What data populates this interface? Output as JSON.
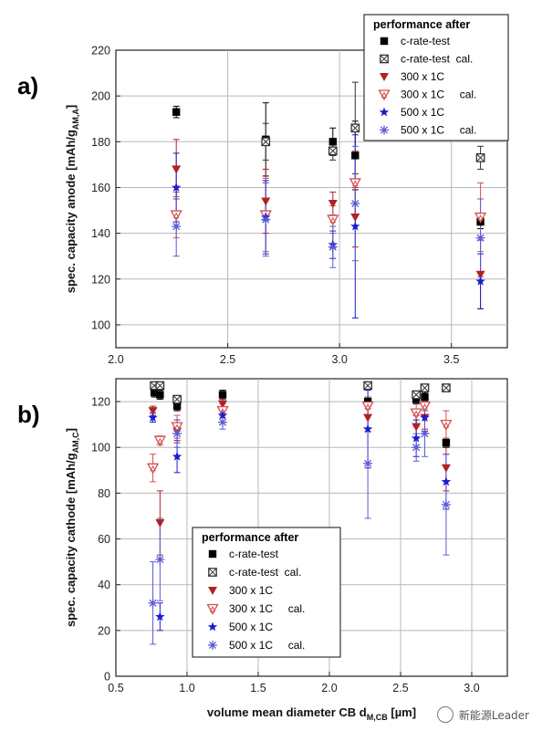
{
  "watermark": "新能源Leader",
  "chart_data": [
    {
      "type": "scatter",
      "panel_label": "a)",
      "ylabel_main": "spec. capacity anode  [mAh/g",
      "ylabel_sub": "AM,A",
      "ylabel_end": "]",
      "xlim": [
        2.0,
        3.75
      ],
      "ylim": [
        90,
        220
      ],
      "xticks": [
        2.0,
        2.5,
        3.0,
        3.5
      ],
      "xtick_labels": [
        "2.0",
        "2.5",
        "3.0",
        "3.5"
      ],
      "yticks": [
        100,
        120,
        140,
        160,
        180,
        200,
        220
      ],
      "grid": true,
      "legend": {
        "position": "top-right",
        "title": "performance after",
        "entries": [
          "c-rate-test",
          "c-rate-test  cal.",
          "300 x 1C",
          "300 x 1C     cal.",
          "500 x 1C",
          "500 x 1C     cal."
        ]
      },
      "series": [
        {
          "name": "c-rate-test",
          "color": "#000000",
          "marker": "square",
          "points": [
            [
              2.27,
              193,
              2.5
            ],
            [
              2.67,
              181,
              16
            ],
            [
              2.97,
              180,
              6
            ],
            [
              3.07,
              174,
              15
            ],
            [
              3.63,
              145,
              3
            ]
          ]
        },
        {
          "name": "c-rate-test  cal.",
          "color": "#333333",
          "marker": "square-x",
          "points": [
            [
              2.67,
              180,
              8
            ],
            [
              2.97,
              176,
              4
            ],
            [
              3.07,
              186,
              20
            ],
            [
              3.63,
              173,
              5
            ]
          ]
        },
        {
          "name": "300 x 1C",
          "color": "#b22222",
          "marker": "triangle-down",
          "points": [
            [
              2.27,
              168,
              13
            ],
            [
              2.67,
              154,
              14
            ],
            [
              2.97,
              153,
              5
            ],
            [
              3.07,
              147,
              13
            ],
            [
              3.63,
              122,
              15
            ]
          ]
        },
        {
          "name": "300 x 1C     cal.",
          "color": "#d45050",
          "marker": "triangle-down-open",
          "points": [
            [
              2.27,
              148,
              10
            ],
            [
              2.67,
              148,
              16
            ],
            [
              2.97,
              146,
              6
            ],
            [
              3.07,
              162,
              14
            ],
            [
              3.63,
              147,
              15
            ]
          ]
        },
        {
          "name": "500 x 1C",
          "color": "#1c1cd0",
          "marker": "star",
          "points": [
            [
              2.27,
              160,
              15
            ],
            [
              2.67,
              147,
              16
            ],
            [
              2.97,
              135,
              6
            ],
            [
              3.07,
              143,
              40
            ],
            [
              3.63,
              119,
              12
            ]
          ]
        },
        {
          "name": "500 x 1C     cal.",
          "color": "#5a5ad8",
          "marker": "asterisk",
          "points": [
            [
              2.27,
              143,
              13
            ],
            [
              2.67,
              146,
              16
            ],
            [
              2.97,
              134,
              9
            ],
            [
              3.07,
              153,
              25
            ],
            [
              3.63,
              138,
              17
            ]
          ]
        }
      ]
    },
    {
      "type": "scatter",
      "panel_label": "b)",
      "ylabel_main": "spec. capacity cathode  [mAh/g",
      "ylabel_sub": "AM,C",
      "ylabel_end": "]",
      "xlabel_main": "volume mean diameter CB d",
      "xlabel_sub": "M,CB",
      "xlabel_end": " [µm]",
      "xlim": [
        0.5,
        3.25
      ],
      "ylim": [
        0,
        130
      ],
      "xticks": [
        0.5,
        1.0,
        1.5,
        2.0,
        2.5,
        3.0
      ],
      "xtick_labels": [
        "0.5",
        "1.0",
        "1.5",
        "2.0",
        "2.5",
        "3.0"
      ],
      "yticks": [
        0,
        20,
        40,
        60,
        80,
        100,
        120
      ],
      "grid": true,
      "legend": {
        "position": "bottom-center",
        "title": "performance after",
        "entries": [
          "c-rate-test",
          "c-rate-test  cal.",
          "300 x 1C",
          "300 x 1C     cal.",
          "500 x 1C",
          "500 x 1C     cal."
        ]
      },
      "series": [
        {
          "name": "c-rate-test",
          "color": "#000000",
          "marker": "square",
          "points": [
            [
              0.77,
              124,
              2
            ],
            [
              0.81,
              123,
              2
            ],
            [
              0.93,
              118,
              2
            ],
            [
              1.25,
              123,
              2
            ],
            [
              2.27,
              120,
              2
            ],
            [
              2.61,
              121,
              2
            ],
            [
              2.67,
              122,
              2
            ],
            [
              2.82,
              102,
              2
            ]
          ]
        },
        {
          "name": "c-rate-test  cal.",
          "color": "#333333",
          "marker": "square-x",
          "points": [
            [
              0.77,
              127,
              1
            ],
            [
              0.81,
              127,
              1
            ],
            [
              0.93,
              121,
              1
            ],
            [
              2.27,
              127,
              1
            ],
            [
              2.61,
              123,
              1
            ],
            [
              2.67,
              126,
              1
            ],
            [
              2.82,
              126,
              1
            ]
          ]
        },
        {
          "name": "300 x 1C",
          "color": "#b22222",
          "marker": "triangle-down",
          "points": [
            [
              0.76,
              116,
              2
            ],
            [
              0.81,
              67,
              14
            ],
            [
              0.93,
              107,
              5
            ],
            [
              1.25,
              119,
              2
            ],
            [
              2.27,
              113,
              6
            ],
            [
              2.61,
              109,
              5
            ],
            [
              2.67,
              113,
              5
            ],
            [
              2.82,
              91,
              10
            ]
          ]
        },
        {
          "name": "300 x 1C     cal.",
          "color": "#d45050",
          "marker": "triangle-down-open",
          "points": [
            [
              0.76,
              91,
              6
            ],
            [
              0.81,
              103,
              2
            ],
            [
              0.93,
              109,
              5
            ],
            [
              1.25,
              116,
              3
            ],
            [
              2.27,
              118,
              4
            ],
            [
              2.61,
              115,
              6
            ],
            [
              2.67,
              118,
              4
            ],
            [
              2.82,
              110,
              6
            ]
          ]
        },
        {
          "name": "500 x 1C",
          "color": "#1c1cd0",
          "marker": "star",
          "points": [
            [
              0.76,
              113,
              2
            ],
            [
              0.81,
              26,
              6
            ],
            [
              0.93,
              96,
              7
            ],
            [
              1.25,
              114,
              3
            ],
            [
              2.27,
              108,
              17
            ],
            [
              2.61,
              104,
              8
            ],
            [
              2.67,
              113,
              6
            ],
            [
              2.82,
              85,
              12
            ]
          ]
        },
        {
          "name": "500 x 1C     cal.",
          "color": "#5a5ad8",
          "marker": "asterisk",
          "points": [
            [
              0.76,
              32,
              18
            ],
            [
              0.81,
              51,
              18
            ],
            [
              0.93,
              106,
              6
            ],
            [
              1.25,
              111,
              3
            ],
            [
              2.27,
              93,
              24
            ],
            [
              2.61,
              100,
              6
            ],
            [
              2.67,
              106,
              10
            ],
            [
              2.82,
              75,
              22
            ]
          ]
        }
      ]
    }
  ]
}
